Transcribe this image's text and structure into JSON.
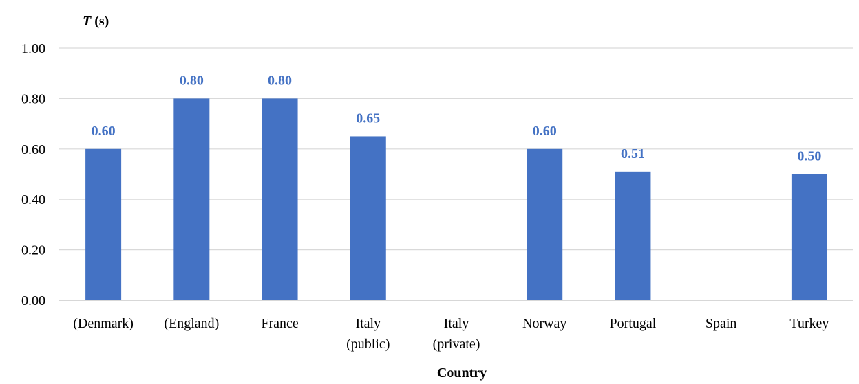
{
  "chart_data": {
    "type": "bar",
    "ylabel": "T (s)",
    "ylabel_italic_part": "T",
    "ylabel_rest": " (s)",
    "xlabel": "Country",
    "ylim": [
      0,
      1.0
    ],
    "yticks": [
      0.0,
      0.2,
      0.4,
      0.6,
      0.8,
      1.0
    ],
    "ytick_labels": [
      "0.00",
      "0.20",
      "0.40",
      "0.60",
      "0.80",
      "1.00"
    ],
    "categories": [
      [
        "(Denmark)"
      ],
      [
        "(England)"
      ],
      [
        "France"
      ],
      [
        "Italy",
        "(public)"
      ],
      [
        "Italy",
        "(private)"
      ],
      [
        "Norway"
      ],
      [
        "Portugal"
      ],
      [
        "Spain"
      ],
      [
        "Turkey"
      ]
    ],
    "values": [
      0.6,
      0.8,
      0.8,
      0.65,
      null,
      0.6,
      0.51,
      null,
      0.5
    ],
    "data_labels": [
      "0.60",
      "0.80",
      "0.80",
      "0.65",
      "",
      "0.60",
      "0.51",
      "",
      "0.50"
    ],
    "grid": true,
    "legend": "none"
  },
  "colors": {
    "bar": "#4472c4",
    "data_label": "#4472c4"
  }
}
